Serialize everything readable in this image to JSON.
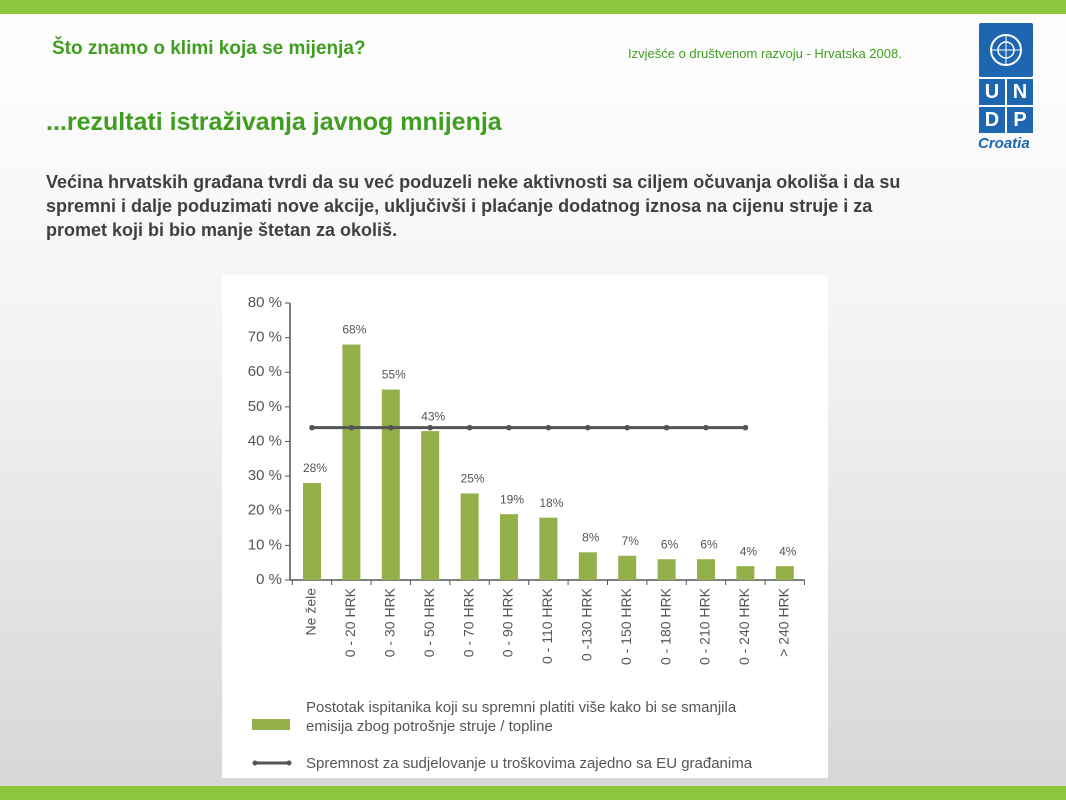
{
  "header": {
    "title": "Što znamo o klimi koja se mijenja?",
    "report": "Izvješće o društvenom razvoju - Hrvatska 2008."
  },
  "logo": {
    "letters": [
      "U",
      "N",
      "D",
      "P"
    ],
    "country": "Croatia"
  },
  "heading": "...rezultati istraživanja javnog mnijenja",
  "body": "Većina hrvatskih građana tvrdi da su već poduzeli neke aktivnosti sa ciljem očuvanja okoliša i da su spremni i dalje poduzimati nove akcije, uključivši i plaćanje dodatnog iznosa na cijenu struje i za promet koji bi bio manje štetan za okoliš.",
  "chart_data": {
    "type": "bar",
    "categories": [
      "Ne žele",
      "0 - 20 HRK",
      "0 - 30 HRK",
      "0 - 50 HRK",
      "0 - 70 HRK",
      "0 - 90 HRK",
      "0 - 110 HRK",
      "0 -130 HRK",
      "0 - 150 HRK",
      "0 - 180 HRK",
      "0 - 210 HRK",
      "0 - 240 HRK",
      "> 240 HRK"
    ],
    "series": [
      {
        "name": "Postotak ispitanika koji su spremni platiti više kako bi se smanjila emisija zbog potrošnje struje / topline",
        "type": "bar",
        "color": "#93b04a",
        "values": [
          28,
          68,
          55,
          43,
          25,
          19,
          18,
          8,
          7,
          6,
          6,
          4,
          4
        ],
        "value_labels": [
          "28%",
          "68%",
          "55%",
          "43%",
          "25%",
          "19%",
          "18%",
          "8%",
          "7%",
          "6%",
          "6%",
          "4%",
          "4%"
        ]
      },
      {
        "name": "Spremnost za sudjelovanje u troškovima zajedno sa EU građanima",
        "type": "line",
        "color": "#555555",
        "values": [
          44,
          44,
          44,
          44,
          44,
          44,
          44,
          44,
          44,
          44,
          44,
          44,
          null
        ]
      }
    ],
    "ylim": [
      0,
      80
    ],
    "yticks": [
      {
        "value": 0,
        "label": "0 %"
      },
      {
        "value": 10,
        "label": "10 %"
      },
      {
        "value": 20,
        "label": "20 %"
      },
      {
        "value": 30,
        "label": "30 %"
      },
      {
        "value": 40,
        "label": "40 %"
      },
      {
        "value": 50,
        "label": "50 %"
      },
      {
        "value": 60,
        "label": "60 %"
      },
      {
        "value": 70,
        "label": "70 %"
      },
      {
        "value": 80,
        "label": "80 %"
      }
    ],
    "legend": "bottom"
  }
}
